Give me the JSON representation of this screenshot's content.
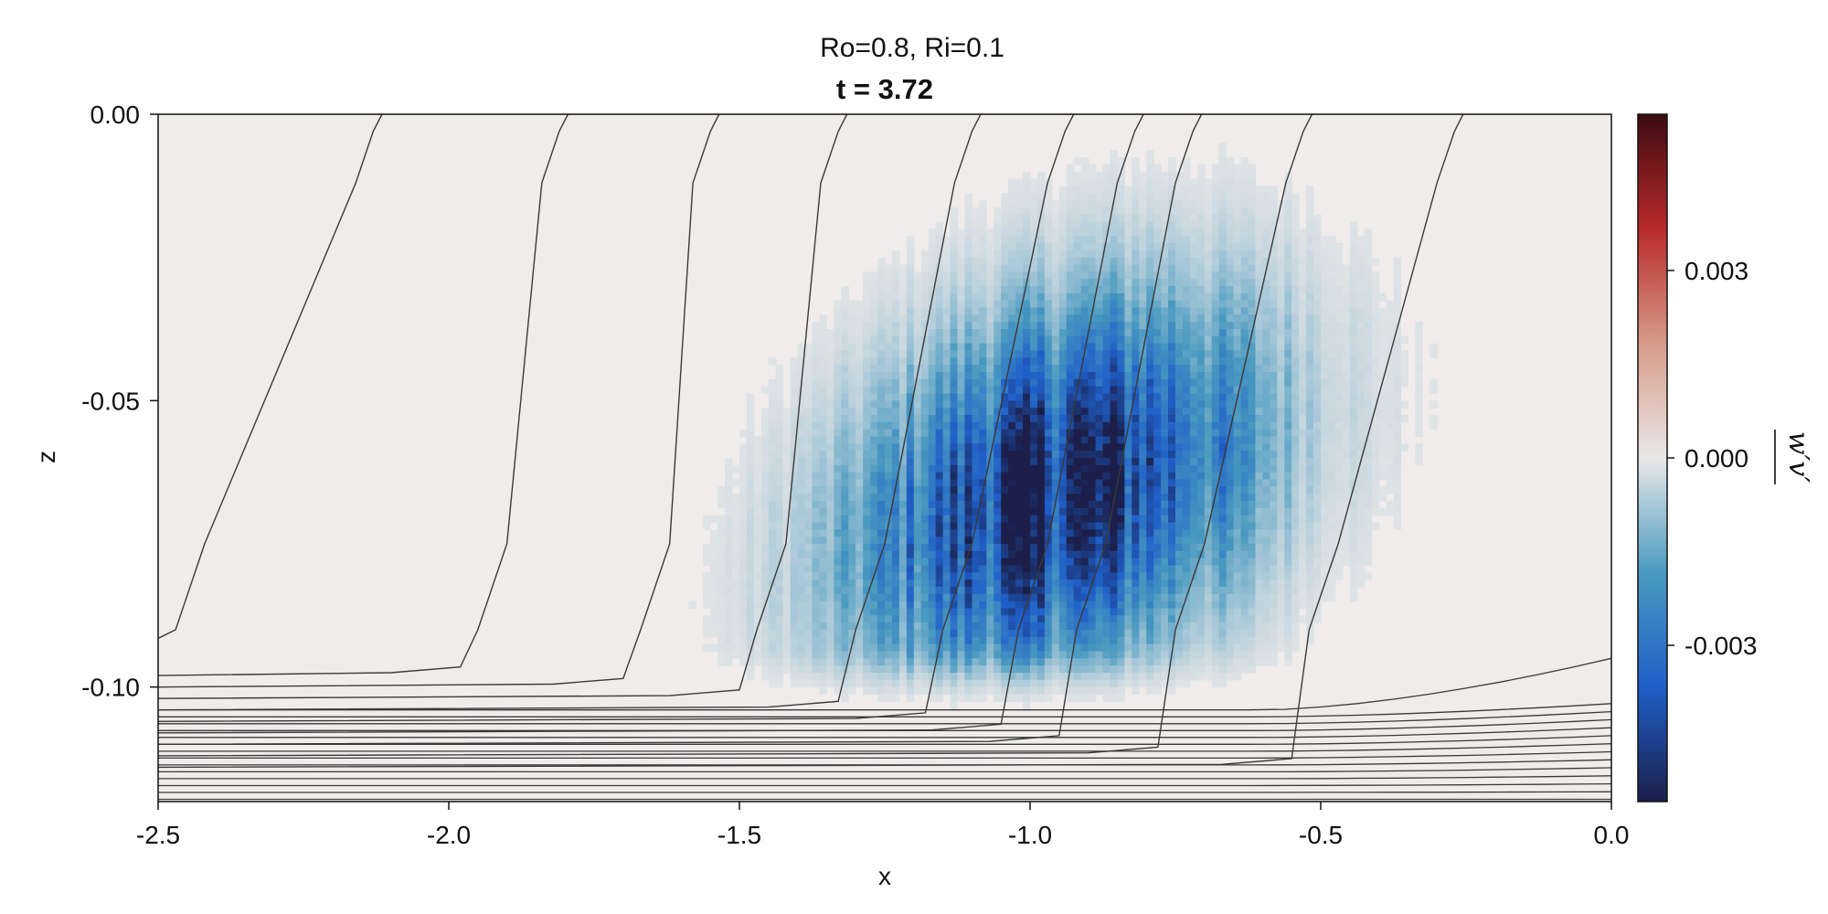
{
  "chart_data": {
    "type": "heatmap",
    "suptitle": "Ro=0.8, Ri=0.1",
    "title": "t = 3.72",
    "xlabel": "x",
    "ylabel": "z",
    "xlim": [
      -2.5,
      0.0
    ],
    "ylim": [
      -0.12,
      0.0
    ],
    "xticks": [
      -2.5,
      -2.0,
      -1.5,
      -1.0,
      -0.5,
      0.0
    ],
    "xtick_labels": [
      "-2.5",
      "-2.0",
      "-1.5",
      "-1.0",
      "-0.5",
      "0.0"
    ],
    "yticks": [
      0.0,
      -0.05,
      -0.1
    ],
    "ytick_labels": [
      "0.00",
      "-0.05",
      "-0.10"
    ],
    "grid": false,
    "colorbar": {
      "label": "w′v′",
      "range": [
        -0.0055,
        0.0055
      ],
      "ticks": [
        0.003,
        0.0,
        -0.003
      ],
      "tick_labels": [
        "0.003",
        "0.000",
        "-0.003"
      ],
      "colormap": [
        "#1b1f4a",
        "#1f5fc8",
        "#4a9ac0",
        "#eae8e8",
        "#d79b8a",
        "#b82a2a",
        "#3d0a12"
      ]
    },
    "field": {
      "description_note": "",
      "peak_x": -0.95,
      "peak_z": -0.066,
      "min_value": -0.0052
    },
    "contours": {
      "tilted_isolines_x_at_surface": [
        -2.13,
        -1.81,
        -1.55,
        -1.33,
        -1.1,
        -0.94,
        -0.82,
        -0.72,
        -0.53,
        -0.27
      ],
      "tilted_isolines_x_at_bottom": [
        -2.5,
        -1.98,
        -1.7,
        -1.5,
        -1.33,
        -1.18,
        -1.05,
        -0.95,
        -0.78,
        -0.55
      ],
      "bottom_layer_z": [
        -0.093,
        -0.098,
        -0.1,
        -0.102,
        -0.104,
        -0.106,
        -0.108,
        -0.11,
        -0.112,
        -0.114,
        -0.116,
        -0.118,
        -0.12
      ]
    }
  }
}
